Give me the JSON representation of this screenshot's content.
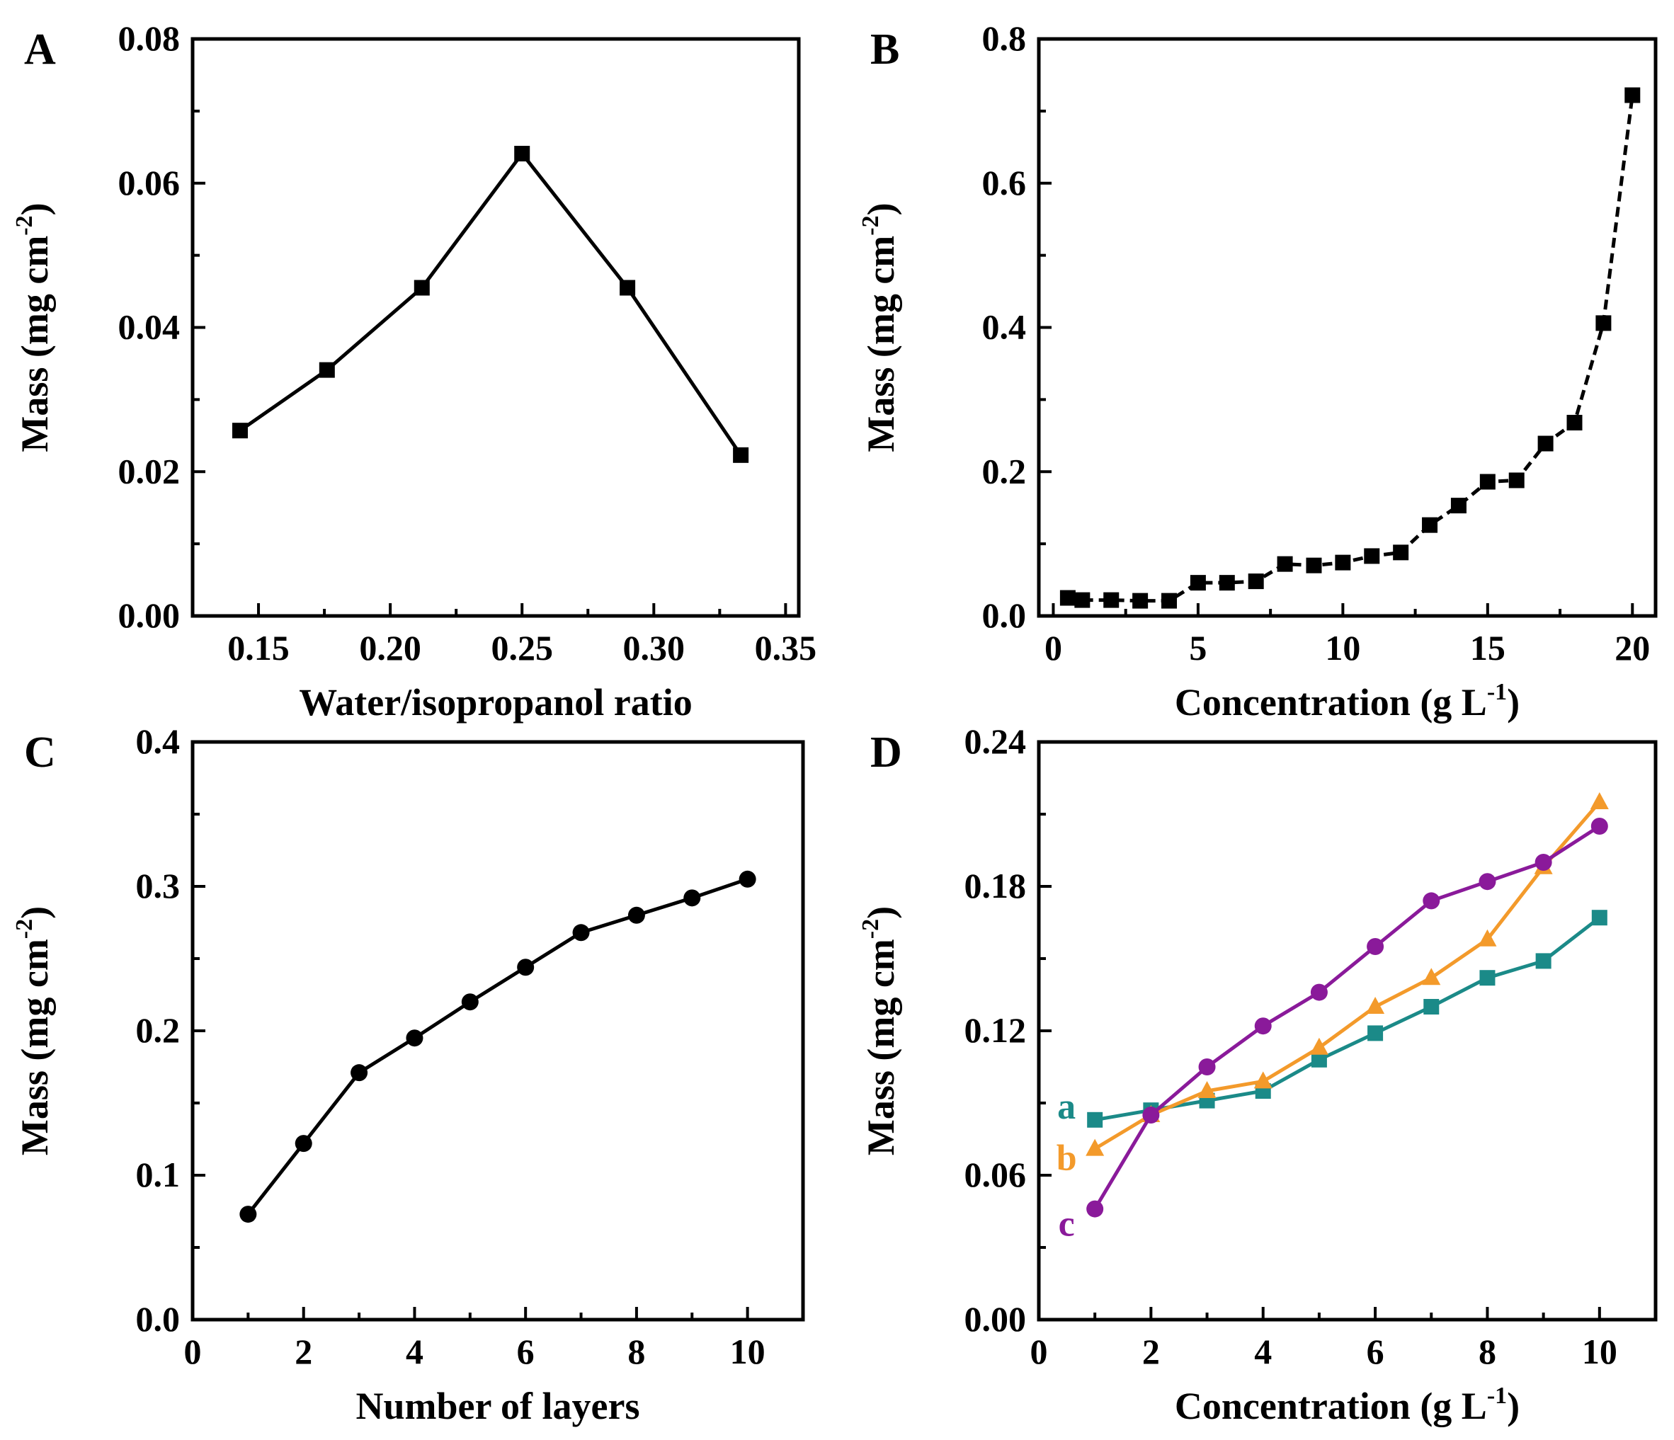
{
  "chart_data": [
    {
      "panel": "A",
      "type": "line",
      "xlabel": "Water/isopropanol ratio",
      "ylabel": "Mass (mg cm",
      "ylabel_sup": "-2",
      "ylabel_end": ")",
      "xlim": [
        0.125,
        0.355
      ],
      "ylim": [
        0,
        0.08
      ],
      "xticks": [
        0.15,
        0.2,
        0.25,
        0.3,
        0.35
      ],
      "xtick_labels": [
        "0.15",
        "0.20",
        "0.25",
        "0.30",
        "0.35"
      ],
      "yticks": [
        0,
        0.02,
        0.04,
        0.06,
        0.08
      ],
      "ytick_labels": [
        "0.00",
        "0.02",
        "0.04",
        "0.06",
        "0.08"
      ],
      "series": [
        {
          "name": "",
          "color": "#000000",
          "marker": "square",
          "dash": false,
          "x": [
            0.143,
            0.176,
            0.212,
            0.25,
            0.29,
            0.333
          ],
          "y": [
            0.0257,
            0.0341,
            0.0455,
            0.0641,
            0.0455,
            0.0223
          ]
        }
      ]
    },
    {
      "panel": "B",
      "type": "line",
      "xlabel": "Concentration (g L",
      "xlabel_sup": "-1",
      "xlabel_end": ")",
      "ylabel": "Mass (mg cm",
      "ylabel_sup": "-2",
      "ylabel_end": ")",
      "xlim": [
        -0.5,
        20.8
      ],
      "ylim": [
        0,
        0.8
      ],
      "xticks": [
        0,
        5,
        10,
        15,
        20
      ],
      "xtick_labels": [
        "0",
        "5",
        "10",
        "15",
        "20"
      ],
      "yticks": [
        0,
        0.2,
        0.4,
        0.6,
        0.8
      ],
      "ytick_labels": [
        "0.0",
        "0.2",
        "0.4",
        "0.6",
        "0.8"
      ],
      "series": [
        {
          "name": "",
          "color": "#000000",
          "marker": "square",
          "dash": true,
          "x": [
            0.5,
            1,
            2,
            3,
            4,
            5,
            6,
            7,
            8,
            9,
            10,
            11,
            12,
            13,
            14,
            15,
            16,
            17,
            18,
            19,
            20
          ],
          "y": [
            0.025,
            0.022,
            0.022,
            0.021,
            0.021,
            0.046,
            0.046,
            0.048,
            0.072,
            0.07,
            0.074,
            0.083,
            0.088,
            0.126,
            0.153,
            0.186,
            0.188,
            0.239,
            0.268,
            0.406,
            0.722
          ]
        }
      ]
    },
    {
      "panel": "C",
      "type": "line",
      "xlabel": "Number of layers",
      "ylabel": "Mass (mg cm",
      "ylabel_sup": "-2",
      "ylabel_end": ")",
      "xlim": [
        0,
        11
      ],
      "ylim": [
        0,
        0.4
      ],
      "xticks": [
        0,
        2,
        4,
        6,
        8,
        10
      ],
      "xtick_labels": [
        "0",
        "2",
        "4",
        "6",
        "8",
        "10"
      ],
      "yticks": [
        0,
        0.1,
        0.2,
        0.3,
        0.4
      ],
      "ytick_labels": [
        "0.0",
        "0.1",
        "0.2",
        "0.3",
        "0.4"
      ],
      "series": [
        {
          "name": "",
          "color": "#000000",
          "marker": "circle",
          "dash": false,
          "x": [
            1,
            2,
            3,
            4,
            5,
            6,
            7,
            8,
            9,
            10
          ],
          "y": [
            0.073,
            0.122,
            0.171,
            0.195,
            0.22,
            0.244,
            0.268,
            0.28,
            0.292,
            0.305
          ]
        }
      ]
    },
    {
      "panel": "D",
      "type": "line",
      "xlabel": "Concentration (g L",
      "xlabel_sup": "-1",
      "xlabel_end": ")",
      "ylabel": "Mass (mg cm",
      "ylabel_sup": "-2",
      "ylabel_end": ")",
      "xlim": [
        0,
        11
      ],
      "ylim": [
        0,
        0.24
      ],
      "xticks": [
        0,
        2,
        4,
        6,
        8,
        10
      ],
      "xtick_labels": [
        "0",
        "2",
        "4",
        "6",
        "8",
        "10"
      ],
      "yticks": [
        0,
        0.06,
        0.12,
        0.18,
        0.24
      ],
      "ytick_labels": [
        "0.00",
        "0.06",
        "0.12",
        "0.18",
        "0.24"
      ],
      "series": [
        {
          "name": "a",
          "color": "#1b8a88",
          "marker": "square",
          "dash": false,
          "x": [
            1,
            2,
            3,
            4,
            5,
            6,
            7,
            8,
            9,
            10
          ],
          "y": [
            0.083,
            0.087,
            0.091,
            0.095,
            0.108,
            0.119,
            0.13,
            0.142,
            0.149,
            0.167
          ]
        },
        {
          "name": "b",
          "color": "#f39a2b",
          "marker": "triangle",
          "dash": false,
          "x": [
            1,
            2,
            3,
            4,
            5,
            6,
            7,
            8,
            9,
            10
          ],
          "y": [
            0.071,
            0.085,
            0.095,
            0.099,
            0.113,
            0.13,
            0.142,
            0.158,
            0.188,
            0.215
          ]
        },
        {
          "name": "c",
          "color": "#8a1a9a",
          "marker": "circle",
          "dash": false,
          "x": [
            1,
            2,
            3,
            4,
            5,
            6,
            7,
            8,
            9,
            10
          ],
          "y": [
            0.046,
            0.085,
            0.105,
            0.122,
            0.136,
            0.155,
            0.174,
            0.182,
            0.19,
            0.205
          ]
        }
      ]
    }
  ]
}
